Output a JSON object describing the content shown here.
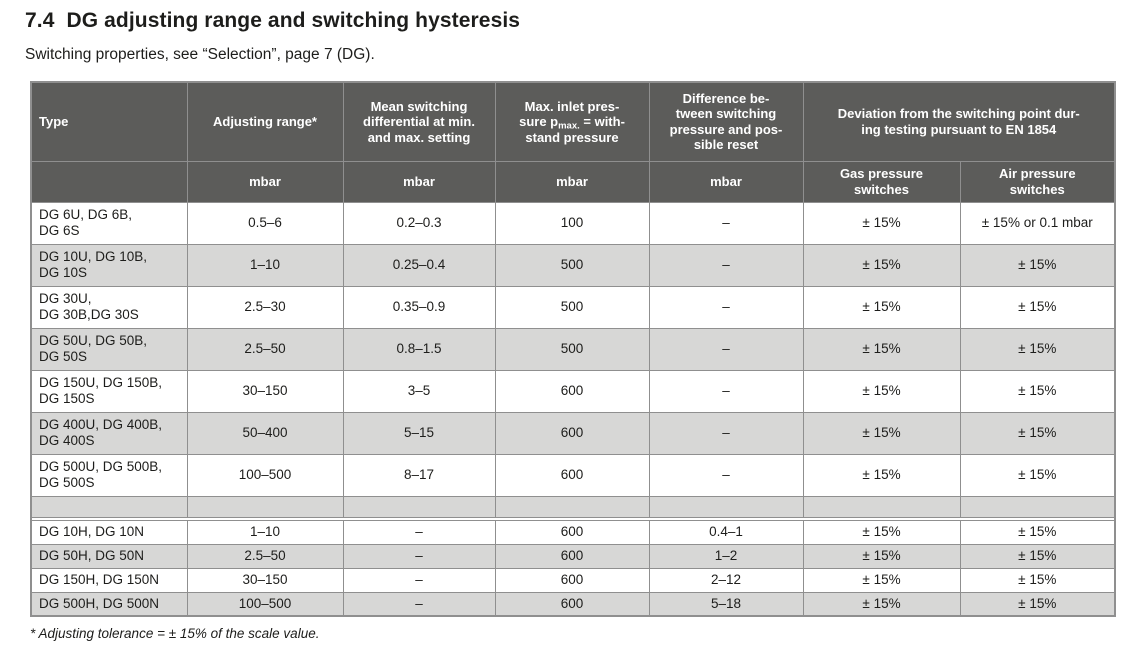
{
  "page": {
    "section_number": "7.4",
    "title": "DG adjusting range and switching hysteresis",
    "subtitle": "Switching properties, see “Selection”, page 7 (DG).",
    "footnote": "* Adjusting tolerance = ± 15% of the scale value."
  },
  "table": {
    "header": {
      "type_label": "Type",
      "adjusting_label": "Adjusting range*",
      "mean_label": "Mean switching\ndifferential at min.\nand max. setting",
      "max_inlet": {
        "pre": "Max. inlet pres-\nsure p",
        "sub": "max.",
        "post": " = with-\nstand pressure"
      },
      "difference_label": "Difference be-\ntween switching\npressure and pos-\nsible reset",
      "deviation_label": "Deviation from the switching point dur-\ning testing pursuant to EN 1854",
      "units": [
        "mbar",
        "mbar",
        "mbar",
        "mbar"
      ],
      "gas_label": "Gas pressure\nswitches",
      "air_label": "Air pressure\nswitches"
    },
    "rows": [
      {
        "kind": "data",
        "lines": 2,
        "shade": false,
        "type": "DG 6U, DG 6B,\nDG 6S",
        "adjusting": "0.5–6",
        "mean": "0.2–0.3",
        "max_inlet": "100",
        "difference": "–",
        "gas": "± 15%",
        "air": "± 15% or 0.1 mbar"
      },
      {
        "kind": "data",
        "lines": 2,
        "shade": true,
        "type": "DG 10U, DG 10B,\nDG 10S",
        "adjusting": "1–10",
        "mean": "0.25–0.4",
        "max_inlet": "500",
        "difference": "–",
        "gas": "± 15%",
        "air": "± 15%"
      },
      {
        "kind": "data",
        "lines": 2,
        "shade": false,
        "type": "DG 30U,\nDG 30B,DG 30S",
        "adjusting": "2.5–30",
        "mean": "0.35–0.9",
        "max_inlet": "500",
        "difference": "–",
        "gas": "± 15%",
        "air": "± 15%"
      },
      {
        "kind": "data",
        "lines": 2,
        "shade": true,
        "type": "DG 50U, DG 50B,\nDG 50S",
        "adjusting": "2.5–50",
        "mean": "0.8–1.5",
        "max_inlet": "500",
        "difference": "–",
        "gas": "± 15%",
        "air": "± 15%"
      },
      {
        "kind": "data",
        "lines": 2,
        "shade": false,
        "type": "DG 150U, DG 150B,\nDG 150S",
        "adjusting": "30–150",
        "mean": "3–5",
        "max_inlet": "600",
        "difference": "–",
        "gas": "± 15%",
        "air": "± 15%"
      },
      {
        "kind": "data",
        "lines": 2,
        "shade": true,
        "type": "DG 400U, DG 400B,\nDG 400S",
        "adjusting": "50–400",
        "mean": "5–15",
        "max_inlet": "600",
        "difference": "–",
        "gas": "± 15%",
        "air": "± 15%"
      },
      {
        "kind": "data",
        "lines": 2,
        "shade": false,
        "type": "DG 500U, DG 500B,\nDG 500S",
        "adjusting": "100–500",
        "mean": "8–17",
        "max_inlet": "600",
        "difference": "–",
        "gas": "± 15%",
        "air": "± 15%"
      },
      {
        "kind": "spacer"
      },
      {
        "kind": "gap"
      },
      {
        "kind": "data",
        "lines": 1,
        "shade": false,
        "type": "DG 10H, DG 10N",
        "adjusting": "1–10",
        "mean": "–",
        "max_inlet": "600",
        "difference": "0.4–1",
        "gas": "± 15%",
        "air": "± 15%"
      },
      {
        "kind": "data",
        "lines": 1,
        "shade": true,
        "type": "DG 50H, DG 50N",
        "adjusting": "2.5–50",
        "mean": "–",
        "max_inlet": "600",
        "difference": "1–2",
        "gas": "± 15%",
        "air": "± 15%"
      },
      {
        "kind": "data",
        "lines": 1,
        "shade": false,
        "type": "DG 150H, DG 150N",
        "adjusting": "30–150",
        "mean": "–",
        "max_inlet": "600",
        "difference": "2–12",
        "gas": "± 15%",
        "air": "± 15%"
      },
      {
        "kind": "data",
        "lines": 1,
        "shade": true,
        "type": "DG 500H, DG 500N",
        "adjusting": "100–500",
        "mean": "–",
        "max_inlet": "600",
        "difference": "5–18",
        "gas": "± 15%",
        "air": "± 15%"
      }
    ]
  },
  "colors": {
    "header_bg": "#5c5c5a",
    "row_shade": "#d7d7d6",
    "border": "#8f8f8f",
    "text": "#1d1d1b"
  }
}
